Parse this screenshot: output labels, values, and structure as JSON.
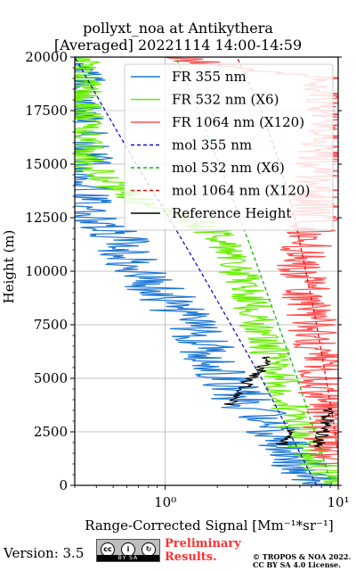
{
  "chart_data": {
    "type": "line",
    "title": "pollyxt_noa at Antikythera",
    "subtitle": "[Averaged] 20221114 14:00-14:59",
    "xlabel": "Range-Corrected Signal [Mm⁻¹*sr⁻¹]",
    "ylabel": "Height (m)",
    "xscale": "log",
    "xlim": [
      0.3,
      10
    ],
    "ylim": [
      0,
      20000
    ],
    "x_ticks": [
      {
        "value": 1,
        "label": "10⁰"
      },
      {
        "value": 10,
        "label": "10¹"
      }
    ],
    "y_ticks": [
      0,
      2500,
      5000,
      7500,
      10000,
      12500,
      15000,
      17500,
      20000
    ],
    "grid": true,
    "legend_position": "top-right",
    "series": [
      {
        "name": "FR 355 nm",
        "color": "#1f77d4",
        "style": "solid",
        "noise": 0.18,
        "points": [
          [
            9.0,
            0
          ],
          [
            7.0,
            400
          ],
          [
            5.5,
            1200
          ],
          [
            4.8,
            2000
          ],
          [
            3.8,
            3000
          ],
          [
            2.8,
            4000
          ],
          [
            2.3,
            5000
          ],
          [
            1.9,
            6000
          ],
          [
            1.6,
            7000
          ],
          [
            1.2,
            8000
          ],
          [
            1.0,
            8800
          ],
          [
            0.8,
            9500
          ],
          [
            0.65,
            10500
          ],
          [
            0.55,
            11500
          ],
          [
            0.35,
            12500
          ],
          [
            0.3,
            20000
          ]
        ]
      },
      {
        "name": "FR 532 nm (X6)",
        "color": "#66ee00",
        "style": "solid",
        "noise": 0.12,
        "points": [
          [
            10.0,
            0
          ],
          [
            8.5,
            700
          ],
          [
            7.0,
            1500
          ],
          [
            6.0,
            2500
          ],
          [
            5.3,
            3500
          ],
          [
            4.8,
            4500
          ],
          [
            4.3,
            5500
          ],
          [
            3.9,
            6500
          ],
          [
            3.5,
            7500
          ],
          [
            3.2,
            8500
          ],
          [
            2.8,
            9500
          ],
          [
            2.5,
            10500
          ],
          [
            2.2,
            11200
          ],
          [
            1.8,
            12000
          ],
          [
            1.2,
            12700
          ],
          [
            0.6,
            13500
          ],
          [
            0.35,
            15000
          ],
          [
            0.32,
            20000
          ]
        ]
      },
      {
        "name": "FR 1064 nm (X120)",
        "color": "#ff5050",
        "style": "solid",
        "noise": 0.15,
        "points": [
          [
            10.0,
            1000
          ],
          [
            9.0,
            2000
          ],
          [
            8.5,
            3500
          ],
          [
            8.0,
            5000
          ],
          [
            7.5,
            6500
          ],
          [
            7.0,
            8000
          ],
          [
            6.5,
            9000
          ],
          [
            6.0,
            10000
          ],
          [
            6.5,
            11000
          ],
          [
            7.0,
            12000
          ],
          [
            7.5,
            13000
          ],
          [
            8.0,
            15000
          ],
          [
            9.0,
            17000
          ],
          [
            8.0,
            19000
          ],
          [
            1.0,
            20000
          ]
        ]
      },
      {
        "name": "mol 355 nm",
        "color": "#1010d0",
        "style": "dashed",
        "noise": 0,
        "points": [
          [
            7.5,
            0
          ],
          [
            5.2,
            2500
          ],
          [
            3.6,
            5000
          ],
          [
            2.4,
            7500
          ],
          [
            1.6,
            10000
          ],
          [
            1.05,
            12500
          ],
          [
            0.68,
            15000
          ],
          [
            0.45,
            17500
          ],
          [
            0.3,
            20000
          ]
        ]
      },
      {
        "name": "mol 532 nm (X6)",
        "color": "#10b810",
        "style": "dashed",
        "noise": 0,
        "points": [
          [
            9.2,
            0
          ],
          [
            7.3,
            2500
          ],
          [
            5.8,
            5000
          ],
          [
            4.5,
            7500
          ],
          [
            3.5,
            10000
          ],
          [
            2.7,
            12500
          ],
          [
            2.05,
            15000
          ],
          [
            1.55,
            17500
          ],
          [
            1.15,
            20000
          ]
        ]
      },
      {
        "name": "mol 1064 nm (X120)",
        "color": "#e01010",
        "style": "dashed",
        "noise": 0,
        "points": [
          [
            10.5,
            0
          ],
          [
            9.6,
            2500
          ],
          [
            8.5,
            5000
          ],
          [
            7.5,
            7500
          ],
          [
            6.5,
            10000
          ],
          [
            5.6,
            12500
          ],
          [
            4.6,
            15000
          ],
          [
            3.6,
            17500
          ],
          [
            2.6,
            20000
          ]
        ]
      },
      {
        "name": "Reference Height",
        "color": "#000000",
        "style": "solid",
        "noise": 0.04,
        "segments": [
          [
            [
              2.3,
              3750
            ],
            [
              2.7,
              4250
            ],
            [
              3.0,
              4800
            ],
            [
              3.5,
              5300
            ],
            [
              4.0,
              6000
            ]
          ],
          [
            [
              4.7,
              1900
            ],
            [
              5.2,
              2200
            ],
            [
              5.6,
              2600
            ]
          ],
          [
            [
              7.6,
              1800
            ],
            [
              8.0,
              2200
            ],
            [
              8.3,
              2700
            ],
            [
              8.6,
              3200
            ],
            [
              8.8,
              3600
            ]
          ]
        ]
      }
    ]
  },
  "footer": {
    "version": "Version: 3.5",
    "license_badge": "BY SA",
    "preliminary_line1": "Preliminary",
    "preliminary_line2": "Results.",
    "copyright_line1": "© TROPOS & NOA 2022.",
    "copyright_line2": "CC BY SA 4.0 License."
  },
  "colors": {
    "preliminary": "#ff3030"
  }
}
